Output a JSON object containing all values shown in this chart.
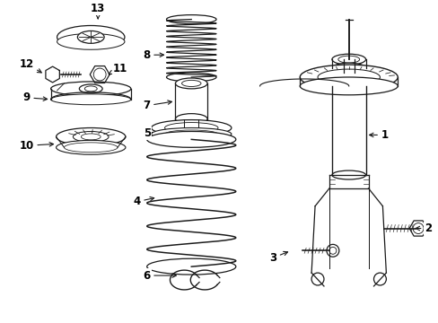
{
  "background_color": "#ffffff",
  "line_color": "#1a1a1a",
  "label_color": "#000000",
  "figsize": [
    4.89,
    3.6
  ],
  "dpi": 100,
  "xlim": [
    0,
    489
  ],
  "ylim": [
    0,
    360
  ]
}
